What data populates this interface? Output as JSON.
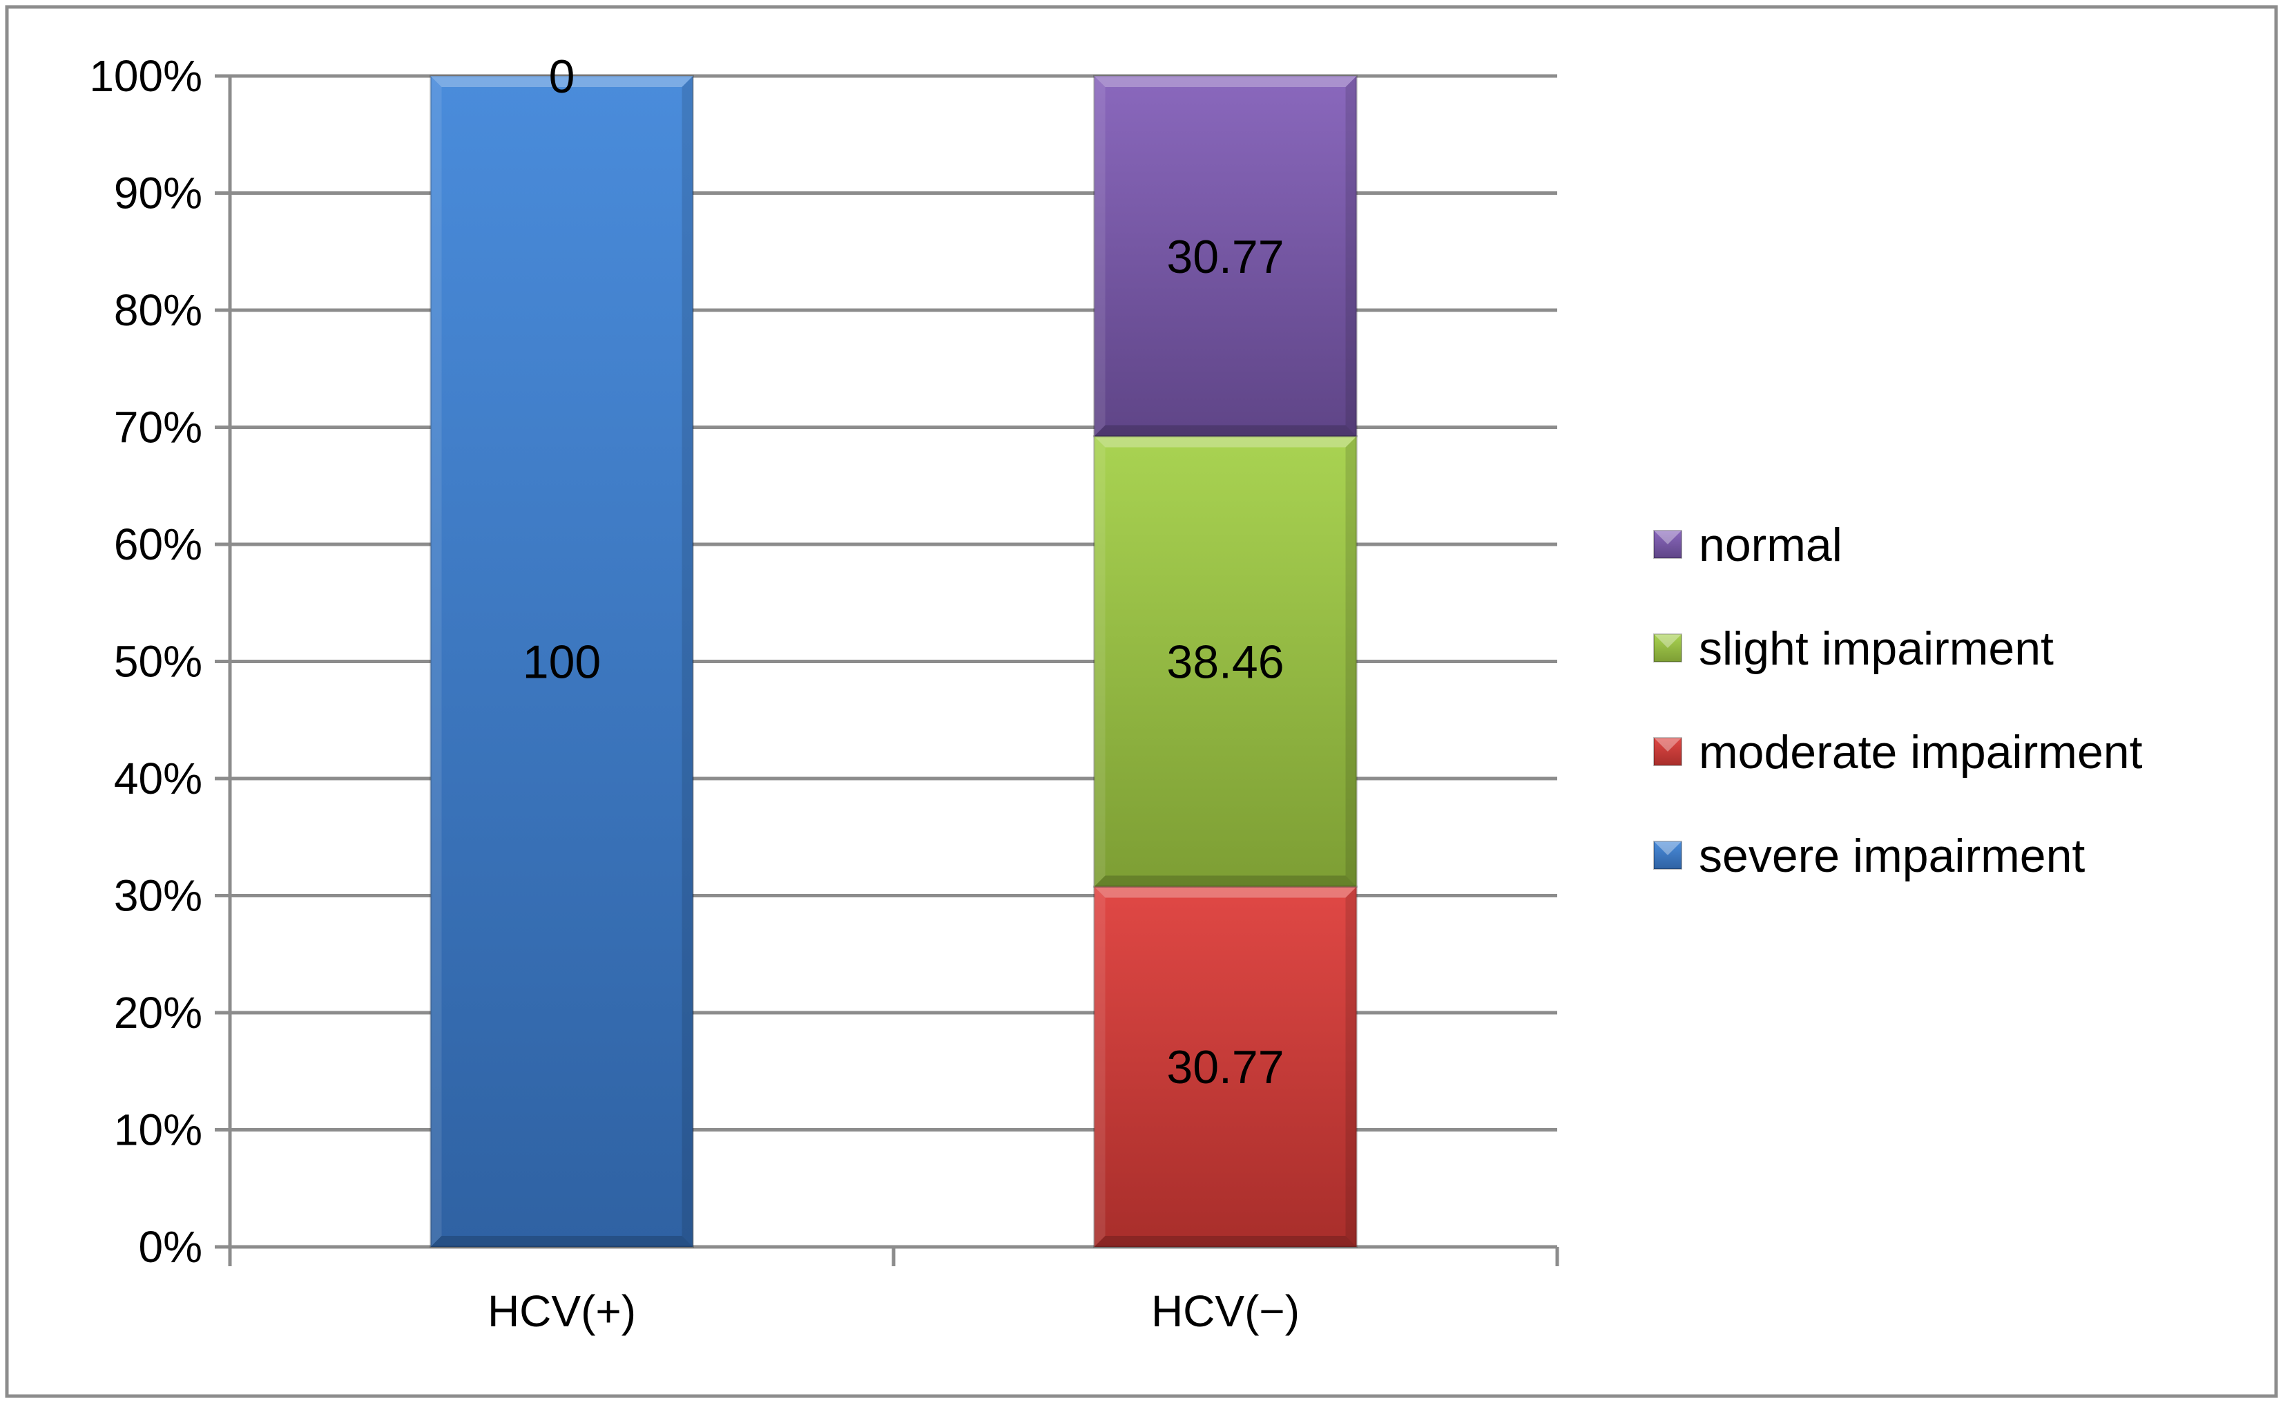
{
  "chart_data": {
    "type": "bar",
    "stacked": true,
    "percent_stacked": true,
    "categories": [
      "HCV(+)",
      "HCV(−)"
    ],
    "series": [
      {
        "name": "severe impairment",
        "values": [
          100,
          0
        ],
        "color": "#3C7BC9",
        "labels": [
          "100",
          ""
        ]
      },
      {
        "name": "moderate impairment",
        "values": [
          0,
          30.77
        ],
        "color": "#D23F3C",
        "labels": [
          "0",
          "30.77"
        ]
      },
      {
        "name": "slight impairment",
        "values": [
          0,
          38.46
        ],
        "color": "#98C046",
        "labels": [
          "",
          "38.46"
        ]
      },
      {
        "name": "normal",
        "values": [
          0,
          30.77
        ],
        "color": "#7A5AA8",
        "labels": [
          "",
          "30.77"
        ]
      }
    ],
    "ylim": [
      0,
      100
    ],
    "yticks": [
      "0%",
      "10%",
      "20%",
      "30%",
      "40%",
      "50%",
      "60%",
      "70%",
      "80%",
      "90%",
      "100%"
    ],
    "grid": true,
    "legend_position": "right",
    "legend_order": [
      "normal",
      "slight impairment",
      "moderate impairment",
      "severe impairment"
    ]
  }
}
